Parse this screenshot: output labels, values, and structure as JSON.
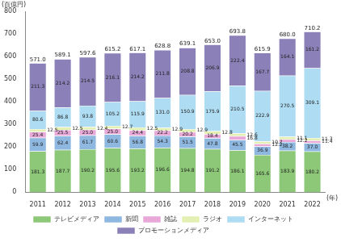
{
  "chart_data": {
    "type": "bar",
    "stacked": true,
    "grid": false,
    "legend": "bottom",
    "data_labels": true,
    "y_label": "(百億円)",
    "x_label": "(年)",
    "categories": [
      "2011",
      "2012",
      "2013",
      "2014",
      "2015",
      "2016",
      "2017",
      "2018",
      "2019",
      "2020",
      "2021",
      "2022"
    ],
    "ylim": [
      0,
      800
    ],
    "yticks": [
      0,
      100,
      200,
      300,
      400,
      500,
      600,
      700,
      800
    ],
    "series": [
      {
        "name": "テレビメディア",
        "color": "#8dc878",
        "values": [
          181.3,
          187.7,
          190.2,
          195.6,
          193.2,
          196.6,
          194.8,
          191.2,
          186.1,
          165.6,
          183.9,
          180.2
        ],
        "value_labels": [
          "181.3",
          "187.7",
          "190.2",
          "195.6",
          "193.2",
          "196.6",
          "194.8",
          "191.2",
          "186.1",
          "165.6",
          "183.9",
          "180.2"
        ]
      },
      {
        "name": "新聞",
        "color": "#8fb8e0",
        "values": [
          59.9,
          62.4,
          61.7,
          60.6,
          56.8,
          54.3,
          51.5,
          47.8,
          45.5,
          36.9,
          38.2,
          37.0
        ],
        "value_labels": [
          "59.9",
          "62.4",
          "61.7",
          "60.6",
          "56.8",
          "54.3",
          "51.5",
          "47.8",
          "45.5",
          "36.9",
          "38.2",
          "37.0"
        ]
      },
      {
        "name": "雑誌",
        "color": "#e8a8d8",
        "values": [
          25.4,
          25.5,
          25.0,
          25.0,
          24.4,
          22.2,
          20.2,
          18.4,
          16.8,
          12.2,
          12.2,
          11.4
        ],
        "value_labels": [
          "25.4",
          "25.5",
          "25.0",
          "25.0",
          "24.4",
          "22.2",
          "20.2",
          "18.4",
          "16.8",
          "12.2",
          "12.2",
          "11.4"
        ]
      },
      {
        "name": "ラジオ",
        "color": "#e4efb4",
        "values": [
          12.5,
          12.5,
          12.4,
          12.7,
          12.5,
          12.9,
          12.9,
          12.8,
          12.6,
          10.7,
          11.1,
          11.3
        ],
        "value_labels": [
          "12.5",
          "12.5",
          "12.4",
          "12.7",
          "12.5",
          "12.9",
          "12.9",
          "12.8",
          "12.6",
          "10.7",
          "11.1",
          "11.3"
        ]
      },
      {
        "name": "インターネット",
        "color": "#aedcf2",
        "values": [
          80.6,
          86.8,
          93.8,
          105.2,
          115.9,
          131.0,
          150.9,
          175.9,
          210.5,
          222.9,
          270.5,
          309.1
        ],
        "value_labels": [
          "80.6",
          "86.8",
          "93.8",
          "105.2",
          "115.9",
          "131.0",
          "150.9",
          "175.9",
          "210.5",
          "222.9",
          "270.5",
          "309.1"
        ]
      },
      {
        "name": "プロモーションメディア",
        "color": "#8c80b8",
        "values": [
          211.3,
          214.2,
          214.5,
          216.1,
          214.2,
          211.8,
          208.8,
          206.9,
          222.4,
          167.7,
          164.1,
          161.2
        ],
        "value_labels": [
          "211.3",
          "214.2",
          "214.5",
          "216.1",
          "214.2",
          "211.8",
          "208.8",
          "206.9",
          "222.4",
          "167.7",
          "164.1",
          "161.2"
        ]
      }
    ],
    "totals": [
      571.0,
      589.1,
      597.6,
      615.2,
      617.1,
      628.8,
      639.1,
      653.0,
      693.8,
      615.9,
      680.0,
      710.2
    ],
    "total_labels": [
      "571.0",
      "589.1",
      "597.6",
      "615.2",
      "617.1",
      "628.8",
      "639.1",
      "653.0",
      "693.8",
      "615.9",
      "680.0",
      "710.2"
    ]
  }
}
